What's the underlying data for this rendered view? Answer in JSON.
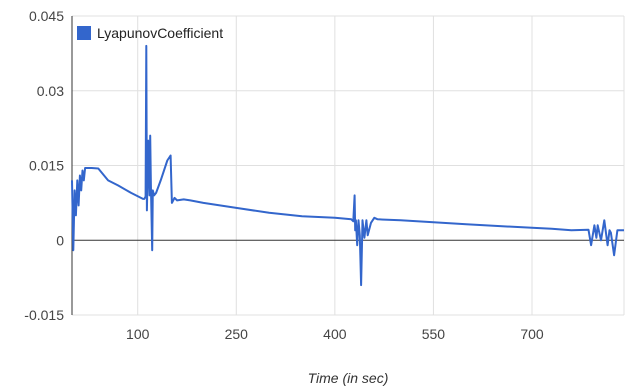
{
  "chart_data": {
    "type": "line",
    "xlabel": "Time (in sec)",
    "ylabel": "",
    "xlim": [
      0,
      840
    ],
    "ylim": [
      -0.015,
      0.045
    ],
    "x_ticks": [
      100,
      250,
      400,
      550,
      700
    ],
    "x_tick_labels": [
      "100",
      "250",
      "400",
      "550",
      "700"
    ],
    "y_ticks": [
      -0.015,
      0,
      0.015,
      0.03,
      0.045
    ],
    "y_tick_labels": [
      "-0.015",
      "0",
      "0.015",
      "0.03",
      "0.045"
    ],
    "grid": true,
    "legend": {
      "position": "top-left",
      "entries": [
        "LyapunovCoefficient"
      ]
    },
    "colors": {
      "series": "#3366cc",
      "grid": "#e0e0e0",
      "zero_line": "#333333"
    },
    "series": [
      {
        "name": "LyapunovCoefficient",
        "x": [
          0,
          2,
          4,
          6,
          8,
          10,
          12,
          14,
          16,
          18,
          20,
          25,
          30,
          40,
          55,
          70,
          90,
          105,
          108,
          110,
          112,
          113,
          114,
          116,
          118,
          119,
          120,
          122,
          123,
          125,
          128,
          135,
          140,
          145,
          150,
          152,
          156,
          160,
          170,
          180,
          200,
          250,
          300,
          350,
          400,
          425,
          428,
          430,
          431,
          432,
          434,
          436,
          438,
          440,
          442,
          445,
          448,
          450,
          455,
          460,
          465,
          500,
          600,
          700,
          730,
          760,
          786,
          790,
          795,
          798,
          800,
          805,
          810,
          815,
          818,
          820,
          825,
          830,
          840
        ],
        "y": [
          0.012,
          -0.002,
          0.01,
          0.005,
          0.012,
          0.007,
          0.013,
          0.01,
          0.014,
          0.012,
          0.0145,
          0.0145,
          0.0145,
          0.0144,
          0.012,
          0.011,
          0.0095,
          0.0085,
          0.0083,
          0.0083,
          0.0088,
          0.039,
          0.006,
          0.02,
          0.009,
          0.021,
          0.011,
          -0.002,
          0.01,
          0.009,
          0.0095,
          0.012,
          0.014,
          0.016,
          0.017,
          0.0075,
          0.0085,
          0.008,
          0.0082,
          0.008,
          0.0075,
          0.0065,
          0.0055,
          0.0048,
          0.0045,
          0.0042,
          0.0038,
          0.009,
          0.002,
          0.004,
          -0.001,
          0.004,
          0.001,
          -0.009,
          0.004,
          0.0005,
          0.004,
          0.001,
          0.0035,
          0.0045,
          0.0042,
          0.004,
          0.0032,
          0.0025,
          0.0023,
          0.002,
          0.0021,
          -0.001,
          0.003,
          0.0005,
          0.003,
          0.0,
          0.004,
          -0.001,
          0.002,
          0.0015,
          -0.003,
          0.002,
          0.002
        ]
      }
    ]
  }
}
